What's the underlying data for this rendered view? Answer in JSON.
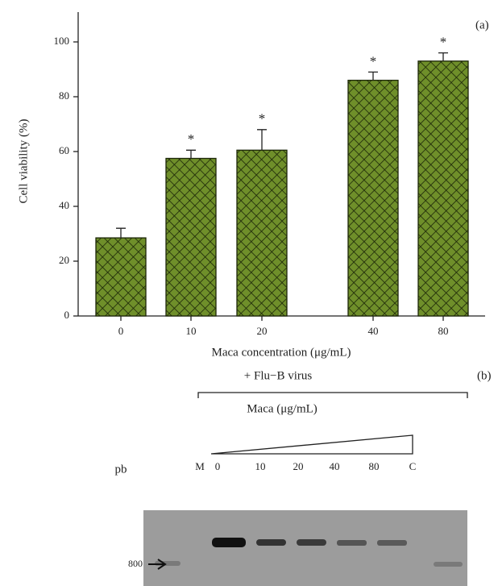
{
  "chart_data": {
    "type": "bar",
    "panel_label": "(a)",
    "ylabel": "Cell viability (%)",
    "xlabel": "Maca concentration (μg/mL)",
    "categories": [
      "0",
      "10",
      "20",
      "40",
      "80"
    ],
    "values": [
      28.5,
      57.5,
      60.5,
      86,
      93
    ],
    "errors": [
      3.5,
      3,
      7.5,
      3,
      3
    ],
    "significance": [
      null,
      "*",
      "*",
      "*",
      "*"
    ],
    "color": "#6f8f2a",
    "ylim": [
      0,
      110
    ],
    "yticks": [
      0,
      20,
      40,
      60,
      80,
      100
    ]
  },
  "gel": {
    "panel_label": "(b)",
    "treatment": "+ Flu−B virus",
    "gradient_label": "Maca (μg/mL)",
    "size_unit": "pb",
    "marker_size": "800",
    "lanes": [
      "M",
      "0",
      "10",
      "20",
      "40",
      "80",
      "C"
    ]
  }
}
